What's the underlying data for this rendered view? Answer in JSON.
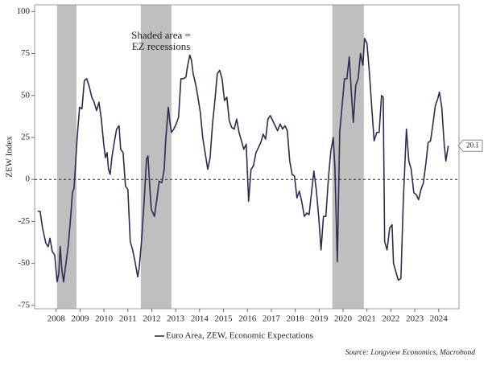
{
  "chart_data": {
    "type": "line",
    "y_label": "ZEW Index",
    "source": "Source: Longview Economics, Macrobond",
    "annotation": [
      "Shaded area =",
      "EZ recessions"
    ],
    "shaded_ranges": [
      [
        2008.54,
        2009.35
      ],
      [
        2012.04,
        2013.32
      ],
      [
        2020.05,
        2021.37
      ]
    ],
    "shade_color": "#bfbfbf",
    "xlim": [
      2007.6,
      2025.35
    ],
    "xticks": [
      {
        "value": 2008.5,
        "label": "2008"
      },
      {
        "value": 2009.5,
        "label": "2009"
      },
      {
        "value": 2010.5,
        "label": "2010"
      },
      {
        "value": 2011.5,
        "label": "2011"
      },
      {
        "value": 2012.5,
        "label": "2012"
      },
      {
        "value": 2013.5,
        "label": "2013"
      },
      {
        "value": 2014.5,
        "label": "2014"
      },
      {
        "value": 2015.5,
        "label": "2015"
      },
      {
        "value": 2016.5,
        "label": "2016"
      },
      {
        "value": 2017.5,
        "label": "2017"
      },
      {
        "value": 2018.5,
        "label": "2018"
      },
      {
        "value": 2019.5,
        "label": "2019"
      },
      {
        "value": 2020.5,
        "label": "2020"
      },
      {
        "value": 2021.5,
        "label": "2021"
      },
      {
        "value": 2022.5,
        "label": "2022"
      },
      {
        "value": 2023.5,
        "label": "2023"
      },
      {
        "value": 2024.5,
        "label": "2024"
      }
    ],
    "ylim": [
      -77,
      104
    ],
    "yticks": [
      100,
      75,
      50,
      25,
      0,
      -25,
      -50,
      -75
    ],
    "zero_line": true,
    "x": [
      2007.73,
      2007.83,
      2007.93,
      2008.07,
      2008.17,
      2008.24,
      2008.34,
      2008.44,
      2008.54,
      2008.61,
      2008.67,
      2008.74,
      2008.81,
      2008.91,
      2009.01,
      2009.11,
      2009.18,
      2009.25,
      2009.31,
      2009.38,
      2009.48,
      2009.58,
      2009.68,
      2009.78,
      2009.89,
      2009.99,
      2010.09,
      2010.19,
      2010.29,
      2010.39,
      2010.49,
      2010.56,
      2010.63,
      2010.69,
      2010.76,
      2010.83,
      2010.93,
      2011.03,
      2011.13,
      2011.2,
      2011.3,
      2011.4,
      2011.5,
      2011.6,
      2011.7,
      2011.8,
      2011.91,
      2011.97,
      2012.07,
      2012.18,
      2012.28,
      2012.34,
      2012.41,
      2012.48,
      2012.55,
      2012.61,
      2012.71,
      2012.81,
      2012.92,
      2013.02,
      2013.08,
      2013.19,
      2013.25,
      2013.32,
      2013.42,
      2013.52,
      2013.62,
      2013.72,
      2013.82,
      2013.93,
      2013.99,
      2014.09,
      2014.16,
      2014.23,
      2014.33,
      2014.43,
      2014.53,
      2014.63,
      2014.73,
      2014.84,
      2014.94,
      2015.04,
      2015.14,
      2015.24,
      2015.34,
      2015.44,
      2015.54,
      2015.64,
      2015.74,
      2015.84,
      2015.95,
      2016.05,
      2016.15,
      2016.25,
      2016.35,
      2016.45,
      2016.55,
      2016.65,
      2016.75,
      2016.86,
      2016.96,
      2017.06,
      2017.16,
      2017.26,
      2017.36,
      2017.46,
      2017.56,
      2017.66,
      2017.76,
      2017.87,
      2017.97,
      2018.07,
      2018.17,
      2018.27,
      2018.37,
      2018.47,
      2018.57,
      2018.67,
      2018.77,
      2018.88,
      2018.98,
      2019.08,
      2019.18,
      2019.28,
      2019.38,
      2019.48,
      2019.58,
      2019.68,
      2019.78,
      2019.89,
      2019.99,
      2020.09,
      2020.16,
      2020.26,
      2020.36,
      2020.46,
      2020.56,
      2020.66,
      2020.76,
      2020.86,
      2020.93,
      2021.03,
      2021.13,
      2021.23,
      2021.33,
      2021.4,
      2021.5,
      2021.6,
      2021.7,
      2021.8,
      2021.91,
      2022.01,
      2022.11,
      2022.18,
      2022.24,
      2022.34,
      2022.45,
      2022.55,
      2022.61,
      2022.71,
      2022.81,
      2022.92,
      2023.02,
      2023.15,
      2023.25,
      2023.35,
      2023.46,
      2023.56,
      2023.66,
      2023.76,
      2023.86,
      2023.96,
      2024.06,
      2024.16,
      2024.26,
      2024.36,
      2024.46,
      2024.53,
      2024.63,
      2024.73,
      2024.8,
      2024.9
    ],
    "series": [
      {
        "name": "Euro Area, ZEW, Economic Expectations",
        "color": "#2b2d4f",
        "values": [
          -19,
          -19,
          -29,
          -38,
          -40,
          -35,
          -43,
          -45,
          -61,
          -56,
          -40,
          -54,
          -61,
          -50,
          -39,
          -22,
          -8,
          -5,
          9,
          25,
          43,
          42,
          59,
          60,
          55,
          49,
          46,
          41,
          46,
          36,
          21,
          13,
          16,
          6,
          3,
          13,
          22,
          30,
          32,
          18,
          16,
          -4,
          -6,
          -37,
          -42,
          -49,
          -58,
          -53,
          -37,
          -13,
          12,
          14,
          -3,
          -18,
          -20,
          -22,
          -12,
          -1,
          -2,
          6,
          23,
          43,
          35,
          28,
          30,
          33,
          37,
          60,
          60,
          61,
          67,
          74,
          71,
          63,
          57,
          49,
          40,
          25,
          16,
          6,
          13,
          33,
          47,
          63,
          65,
          60,
          47,
          49,
          35,
          31,
          30,
          36,
          28,
          23,
          18,
          21,
          -13,
          6,
          8,
          16,
          19,
          22,
          27,
          24,
          36,
          38,
          35,
          32,
          29,
          33,
          30,
          32,
          29,
          11,
          3,
          2,
          -11,
          -7,
          -13,
          -22,
          -20,
          -21,
          -8,
          5,
          -6,
          -22,
          -42,
          -22,
          -22,
          1,
          17,
          25,
          7,
          -49,
          28,
          44,
          60,
          60,
          73,
          49,
          34,
          56,
          60,
          75,
          68,
          84,
          81,
          64,
          43,
          23,
          28,
          28,
          50,
          49,
          -37,
          -42,
          -29,
          -27,
          -50,
          -55,
          -60,
          -59,
          -13,
          30,
          11,
          6,
          -8,
          -9,
          -12,
          -6,
          -2,
          9,
          22,
          23,
          33,
          44,
          48,
          52,
          43,
          21,
          11,
          20.1
        ]
      }
    ]
  }
}
